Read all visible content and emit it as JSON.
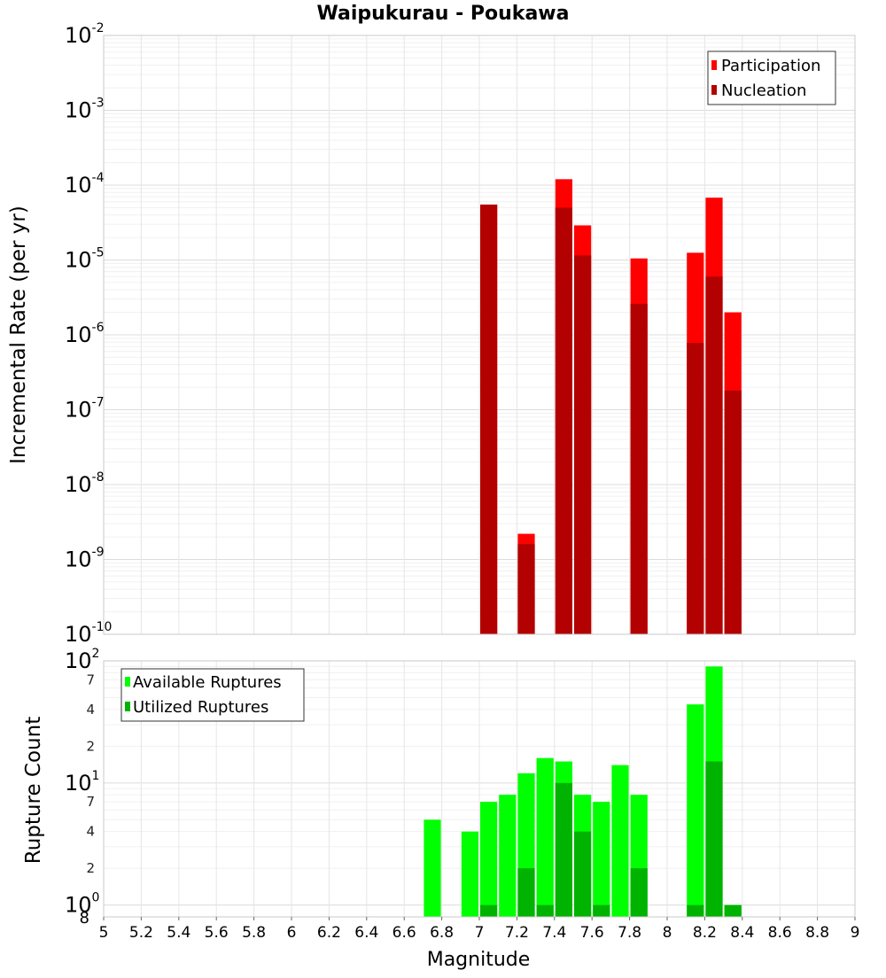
{
  "chart_data": [
    {
      "type": "bar",
      "title": "Waipukurau - Poukawa",
      "ylabel": "Incremental Rate (per yr)",
      "xlabel": "",
      "yscale": "log",
      "xlim": [
        5,
        9
      ],
      "ylim": [
        1e-10,
        0.01
      ],
      "grid": true,
      "legend_position": "top-right",
      "y_ticks": [
        {
          "base": "10",
          "exp": "-10"
        },
        {
          "base": "10",
          "exp": "-9"
        },
        {
          "base": "10",
          "exp": "-8"
        },
        {
          "base": "10",
          "exp": "-7"
        },
        {
          "base": "10",
          "exp": "-6"
        },
        {
          "base": "10",
          "exp": "-5"
        },
        {
          "base": "10",
          "exp": "-4"
        },
        {
          "base": "10",
          "exp": "-3"
        },
        {
          "base": "10",
          "exp": "-2"
        }
      ],
      "x": [
        7.05,
        7.25,
        7.45,
        7.55,
        7.85,
        8.15,
        8.25,
        8.35
      ],
      "series": [
        {
          "name": "Participation",
          "color": "#ff0000",
          "values": [
            5.5e-05,
            2.2e-09,
            0.00012,
            2.9e-05,
            1.05e-05,
            1.25e-05,
            6.8e-05,
            2e-06
          ]
        },
        {
          "name": "Nucleation",
          "color": "#b30000",
          "values": [
            5.5e-05,
            1.6e-09,
            5e-05,
            1.15e-05,
            2.6e-06,
            7.8e-07,
            6e-06,
            1.8e-07
          ]
        }
      ]
    },
    {
      "type": "bar",
      "title": "",
      "ylabel": "Rupture Count",
      "xlabel": "Magnitude",
      "yscale": "log",
      "xlim": [
        5,
        9
      ],
      "ylim": [
        0.8,
        100
      ],
      "grid": true,
      "legend_position": "top-left",
      "x_ticks": [
        "5",
        "5.2",
        "5.4",
        "5.6",
        "5.8",
        "6",
        "6.2",
        "6.4",
        "6.6",
        "6.8",
        "7",
        "7.2",
        "7.4",
        "7.6",
        "7.8",
        "8",
        "8.2",
        "8.4",
        "8.6",
        "8.8",
        "9"
      ],
      "y_major_ticks": [
        {
          "base": "10",
          "exp": "0"
        },
        {
          "base": "10",
          "exp": "1"
        },
        {
          "base": "10",
          "exp": "2"
        }
      ],
      "y_minor_ticks": [
        "8",
        "2",
        "4",
        "7",
        "2",
        "4",
        "7"
      ],
      "x": [
        6.75,
        6.95,
        7.05,
        7.15,
        7.25,
        7.35,
        7.45,
        7.55,
        7.65,
        7.75,
        7.85,
        8.15,
        8.25,
        8.35
      ],
      "series": [
        {
          "name": "Available Ruptures",
          "color": "#00ff00",
          "values": [
            5,
            4,
            7,
            8,
            12,
            16,
            15,
            8,
            7,
            14,
            8,
            44,
            90,
            1
          ]
        },
        {
          "name": "Utilized Ruptures",
          "color": "#00b300",
          "values": [
            0,
            0,
            1,
            0,
            2,
            1,
            10,
            4,
            1,
            0,
            2,
            1,
            15,
            1
          ]
        }
      ]
    }
  ]
}
